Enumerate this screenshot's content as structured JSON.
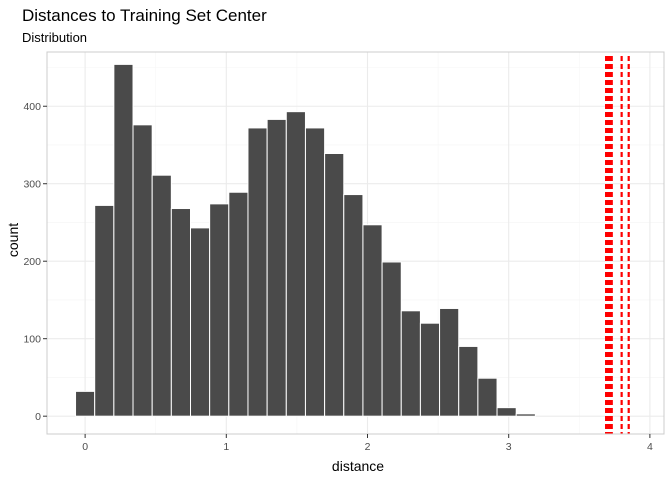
{
  "chart_data": {
    "type": "bar",
    "title": "Distances to Training Set Center",
    "subtitle": "Distribution",
    "xlabel": "distance",
    "ylabel": "count",
    "xlim": [
      -0.27,
      4.1
    ],
    "ylim": [
      -23,
      470
    ],
    "x_ticks": [
      0,
      1,
      2,
      3,
      4
    ],
    "y_ticks": [
      0,
      100,
      200,
      300,
      400
    ],
    "grid": true,
    "bin_width": 0.1357,
    "bins": [
      {
        "x": 0.0,
        "count": 32
      },
      {
        "x": 0.1357,
        "count": 272
      },
      {
        "x": 0.2714,
        "count": 454
      },
      {
        "x": 0.4071,
        "count": 376
      },
      {
        "x": 0.5428,
        "count": 311
      },
      {
        "x": 0.6785,
        "count": 268
      },
      {
        "x": 0.8142,
        "count": 243
      },
      {
        "x": 0.9499,
        "count": 274
      },
      {
        "x": 1.0856,
        "count": 289
      },
      {
        "x": 1.2213,
        "count": 372
      },
      {
        "x": 1.357,
        "count": 383
      },
      {
        "x": 1.4927,
        "count": 393
      },
      {
        "x": 1.6284,
        "count": 372
      },
      {
        "x": 1.7641,
        "count": 339
      },
      {
        "x": 1.8998,
        "count": 286
      },
      {
        "x": 2.0355,
        "count": 247
      },
      {
        "x": 2.1712,
        "count": 199
      },
      {
        "x": 2.3069,
        "count": 136
      },
      {
        "x": 2.4426,
        "count": 120
      },
      {
        "x": 2.5783,
        "count": 139
      },
      {
        "x": 2.714,
        "count": 90
      },
      {
        "x": 2.8497,
        "count": 49
      },
      {
        "x": 2.9854,
        "count": 11
      },
      {
        "x": 3.1211,
        "count": 3
      }
    ],
    "vlines": [
      3.69,
      3.7,
      3.71,
      3.72,
      3.73,
      3.8,
      3.85
    ],
    "colors": {
      "bar_fill": "#4a4a4a",
      "bar_stroke": "#ffffff",
      "vline": "#ff0000",
      "panel_border": "#cccccc",
      "grid_major": "#ebebeb",
      "grid_minor": "#f5f5f5"
    }
  }
}
